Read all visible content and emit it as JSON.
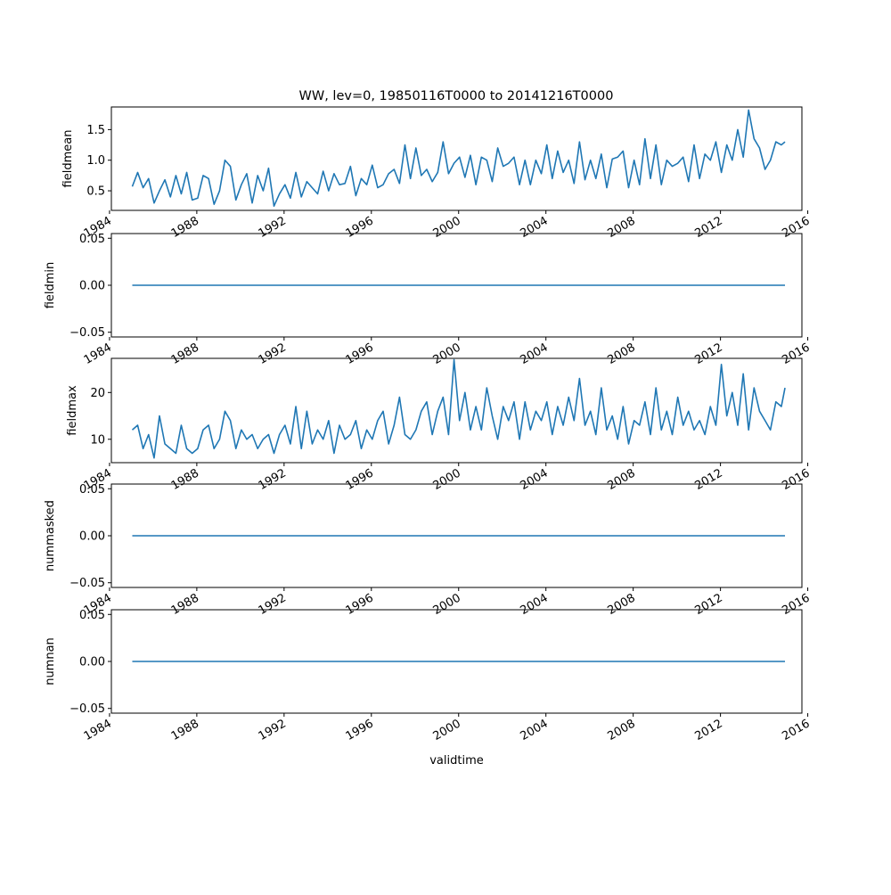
{
  "figure": {
    "title": "WW, lev=0, 19850116T0000 to 20141216T0000"
  },
  "style": {
    "line_color": "#1f77b4",
    "axis_color": "#000000",
    "background": "#ffffff"
  },
  "chart_data": [
    {
      "type": "line",
      "title": "WW, lev=0, 19850116T0000 to 20141216T0000",
      "ylabel": "fieldmean",
      "xlabel": "",
      "grid": false,
      "xlim": [
        "1984-02-01",
        "2015-09-25"
      ],
      "ylim": [
        0.18,
        1.87
      ],
      "yticks": [
        0.5,
        1.0,
        1.5
      ],
      "ytick_labels": [
        "0.5",
        "1.0",
        "1.5"
      ],
      "xticks": [
        "1984-01-01",
        "1988-01-01",
        "1992-01-01",
        "1996-01-01",
        "2000-01-01",
        "2004-01-01",
        "2008-01-01",
        "2012-01-01",
        "2016-01-01"
      ],
      "xtick_labels": [
        "1984",
        "1988",
        "1992",
        "1996",
        "2000",
        "2004",
        "2008",
        "2012",
        "2016"
      ],
      "series": [
        {
          "x": [
            "1985-01-16",
            "1985-04-16",
            "1985-07-16",
            "1985-10-16",
            "1986-01-16",
            "1986-04-16",
            "1986-07-16",
            "1986-10-16",
            "1987-01-16",
            "1987-04-16",
            "1987-07-16",
            "1987-10-16",
            "1988-01-16",
            "1988-04-16",
            "1988-07-16",
            "1988-10-16",
            "1989-01-16",
            "1989-04-16",
            "1989-07-16",
            "1989-10-16",
            "1990-01-16",
            "1990-04-16",
            "1990-07-16",
            "1990-10-16",
            "1991-01-16",
            "1991-04-16",
            "1991-07-16",
            "1991-10-16",
            "1992-01-16",
            "1992-04-16",
            "1992-07-16",
            "1992-10-16",
            "1993-01-16",
            "1993-04-16",
            "1993-07-16",
            "1993-10-16",
            "1994-01-16",
            "1994-04-16",
            "1994-07-16",
            "1994-10-16",
            "1995-01-16",
            "1995-04-16",
            "1995-07-16",
            "1995-10-16",
            "1996-01-16",
            "1996-04-16",
            "1996-07-16",
            "1996-10-16",
            "1997-01-16",
            "1997-04-16",
            "1997-07-16",
            "1997-10-16",
            "1998-01-16",
            "1998-04-16",
            "1998-07-16",
            "1998-10-16",
            "1999-01-16",
            "1999-04-16",
            "1999-07-16",
            "1999-10-16",
            "2000-01-16",
            "2000-04-16",
            "2000-07-16",
            "2000-10-16",
            "2001-01-16",
            "2001-04-16",
            "2001-07-16",
            "2001-10-16",
            "2002-01-16",
            "2002-04-16",
            "2002-07-16",
            "2002-10-16",
            "2003-01-16",
            "2003-04-16",
            "2003-07-16",
            "2003-10-16",
            "2004-01-16",
            "2004-04-16",
            "2004-07-16",
            "2004-10-16",
            "2005-01-16",
            "2005-04-16",
            "2005-07-16",
            "2005-10-16",
            "2006-01-16",
            "2006-04-16",
            "2006-07-16",
            "2006-10-16",
            "2007-01-16",
            "2007-04-16",
            "2007-07-16",
            "2007-10-16",
            "2008-01-16",
            "2008-04-16",
            "2008-07-16",
            "2008-10-16",
            "2009-01-16",
            "2009-04-16",
            "2009-07-16",
            "2009-10-16",
            "2010-01-16",
            "2010-04-16",
            "2010-07-16",
            "2010-10-16",
            "2011-01-16",
            "2011-04-16",
            "2011-07-16",
            "2011-10-16",
            "2012-01-16",
            "2012-04-16",
            "2012-07-16",
            "2012-10-16",
            "2013-01-16",
            "2013-04-16",
            "2013-07-16",
            "2013-10-16",
            "2014-01-16",
            "2014-04-16",
            "2014-07-16",
            "2014-10-16",
            "2014-12-16"
          ],
          "values": [
            0.57,
            0.8,
            0.55,
            0.7,
            0.3,
            0.5,
            0.68,
            0.4,
            0.75,
            0.45,
            0.8,
            0.35,
            0.38,
            0.75,
            0.7,
            0.28,
            0.5,
            1.0,
            0.9,
            0.35,
            0.6,
            0.78,
            0.3,
            0.75,
            0.5,
            0.87,
            0.25,
            0.45,
            0.6,
            0.38,
            0.8,
            0.4,
            0.65,
            0.55,
            0.45,
            0.82,
            0.5,
            0.78,
            0.6,
            0.62,
            0.9,
            0.42,
            0.7,
            0.6,
            0.92,
            0.55,
            0.6,
            0.78,
            0.85,
            0.62,
            1.25,
            0.7,
            1.2,
            0.75,
            0.85,
            0.65,
            0.8,
            1.3,
            0.78,
            0.95,
            1.05,
            0.72,
            1.08,
            0.6,
            1.05,
            1.0,
            0.65,
            1.2,
            0.9,
            0.95,
            1.05,
            0.6,
            1.0,
            0.6,
            1.0,
            0.78,
            1.25,
            0.7,
            1.15,
            0.8,
            1.0,
            0.62,
            1.3,
            0.68,
            1.0,
            0.7,
            1.1,
            0.55,
            1.02,
            1.05,
            1.15,
            0.55,
            1.0,
            0.6,
            1.35,
            0.7,
            1.25,
            0.6,
            1.0,
            0.9,
            0.95,
            1.05,
            0.65,
            1.25,
            0.7,
            1.1,
            1.0,
            1.3,
            0.8,
            1.25,
            1.0,
            1.5,
            1.05,
            1.82,
            1.35,
            1.2,
            0.85,
            1.0,
            1.3,
            1.25,
            1.3
          ]
        }
      ]
    },
    {
      "type": "line",
      "ylabel": "fieldmin",
      "xlabel": "",
      "grid": false,
      "xlim": [
        "1984-02-01",
        "2015-09-25"
      ],
      "ylim": [
        -0.055,
        0.055
      ],
      "yticks": [
        -0.05,
        0.0,
        0.05
      ],
      "ytick_labels": [
        "−0.05",
        "0.00",
        "0.05"
      ],
      "xticks": [
        "1984-01-01",
        "1988-01-01",
        "1992-01-01",
        "1996-01-01",
        "2000-01-01",
        "2004-01-01",
        "2008-01-01",
        "2012-01-01",
        "2016-01-01"
      ],
      "xtick_labels": [
        "1984",
        "1988",
        "1992",
        "1996",
        "2000",
        "2004",
        "2008",
        "2012",
        "2016"
      ],
      "series": [
        {
          "x": [
            "1985-01-16",
            "2014-12-16"
          ],
          "values": [
            0,
            0
          ]
        }
      ]
    },
    {
      "type": "line",
      "ylabel": "fieldmax",
      "xlabel": "",
      "grid": false,
      "xlim": [
        "1984-02-01",
        "2015-09-25"
      ],
      "ylim": [
        5,
        27.3
      ],
      "yticks": [
        10,
        20
      ],
      "ytick_labels": [
        "10",
        "20"
      ],
      "xticks": [
        "1984-01-01",
        "1988-01-01",
        "1992-01-01",
        "1996-01-01",
        "2000-01-01",
        "2004-01-01",
        "2008-01-01",
        "2012-01-01",
        "2016-01-01"
      ],
      "xtick_labels": [
        "1984",
        "1988",
        "1992",
        "1996",
        "2000",
        "2004",
        "2008",
        "2012",
        "2016"
      ],
      "series": [
        {
          "x": [
            "1985-01-16",
            "1985-04-16",
            "1985-07-16",
            "1985-10-16",
            "1986-01-16",
            "1986-04-16",
            "1986-07-16",
            "1986-10-16",
            "1987-01-16",
            "1987-04-16",
            "1987-07-16",
            "1987-10-16",
            "1988-01-16",
            "1988-04-16",
            "1988-07-16",
            "1988-10-16",
            "1989-01-16",
            "1989-04-16",
            "1989-07-16",
            "1989-10-16",
            "1990-01-16",
            "1990-04-16",
            "1990-07-16",
            "1990-10-16",
            "1991-01-16",
            "1991-04-16",
            "1991-07-16",
            "1991-10-16",
            "1992-01-16",
            "1992-04-16",
            "1992-07-16",
            "1992-10-16",
            "1993-01-16",
            "1993-04-16",
            "1993-07-16",
            "1993-10-16",
            "1994-01-16",
            "1994-04-16",
            "1994-07-16",
            "1994-10-16",
            "1995-01-16",
            "1995-04-16",
            "1995-07-16",
            "1995-10-16",
            "1996-01-16",
            "1996-04-16",
            "1996-07-16",
            "1996-10-16",
            "1997-01-16",
            "1997-04-16",
            "1997-07-16",
            "1997-10-16",
            "1998-01-16",
            "1998-04-16",
            "1998-07-16",
            "1998-10-16",
            "1999-01-16",
            "1999-04-16",
            "1999-07-16",
            "1999-10-16",
            "2000-01-16",
            "2000-04-16",
            "2000-07-16",
            "2000-10-16",
            "2001-01-16",
            "2001-04-16",
            "2001-07-16",
            "2001-10-16",
            "2002-01-16",
            "2002-04-16",
            "2002-07-16",
            "2002-10-16",
            "2003-01-16",
            "2003-04-16",
            "2003-07-16",
            "2003-10-16",
            "2004-01-16",
            "2004-04-16",
            "2004-07-16",
            "2004-10-16",
            "2005-01-16",
            "2005-04-16",
            "2005-07-16",
            "2005-10-16",
            "2006-01-16",
            "2006-04-16",
            "2006-07-16",
            "2006-10-16",
            "2007-01-16",
            "2007-04-16",
            "2007-07-16",
            "2007-10-16",
            "2008-01-16",
            "2008-04-16",
            "2008-07-16",
            "2008-10-16",
            "2009-01-16",
            "2009-04-16",
            "2009-07-16",
            "2009-10-16",
            "2010-01-16",
            "2010-04-16",
            "2010-07-16",
            "2010-10-16",
            "2011-01-16",
            "2011-04-16",
            "2011-07-16",
            "2011-10-16",
            "2012-01-16",
            "2012-04-16",
            "2012-07-16",
            "2012-10-16",
            "2013-01-16",
            "2013-04-16",
            "2013-07-16",
            "2013-10-16",
            "2014-01-16",
            "2014-04-16",
            "2014-07-16",
            "2014-10-16",
            "2014-12-16"
          ],
          "values": [
            12,
            13,
            8,
            11,
            6,
            15,
            9,
            8,
            7,
            13,
            8,
            7,
            8,
            12,
            13,
            8,
            10,
            16,
            14,
            8,
            12,
            10,
            11,
            8,
            10,
            11,
            7,
            11,
            13,
            9,
            17,
            8,
            16,
            9,
            12,
            10,
            14,
            7,
            13,
            10,
            11,
            14,
            8,
            12,
            10,
            14,
            16,
            9,
            13,
            19,
            11,
            10,
            12,
            16,
            18,
            11,
            16,
            19,
            11,
            27,
            14,
            20,
            12,
            17,
            12,
            21,
            15,
            10,
            17,
            14,
            18,
            10,
            18,
            12,
            16,
            14,
            18,
            11,
            17,
            13,
            19,
            14,
            23,
            13,
            16,
            11,
            21,
            12,
            15,
            10,
            17,
            9,
            14,
            13,
            18,
            11,
            21,
            12,
            16,
            11,
            19,
            13,
            16,
            12,
            14,
            11,
            17,
            13,
            26,
            15,
            20,
            13,
            24,
            12,
            21,
            16,
            14,
            12,
            18,
            17,
            21
          ]
        }
      ]
    },
    {
      "type": "line",
      "ylabel": "nummasked",
      "xlabel": "",
      "grid": false,
      "xlim": [
        "1984-02-01",
        "2015-09-25"
      ],
      "ylim": [
        -0.055,
        0.055
      ],
      "yticks": [
        -0.05,
        0.0,
        0.05
      ],
      "ytick_labels": [
        "−0.05",
        "0.00",
        "0.05"
      ],
      "xticks": [
        "1984-01-01",
        "1988-01-01",
        "1992-01-01",
        "1996-01-01",
        "2000-01-01",
        "2004-01-01",
        "2008-01-01",
        "2012-01-01",
        "2016-01-01"
      ],
      "xtick_labels": [
        "1984",
        "1988",
        "1992",
        "1996",
        "2000",
        "2004",
        "2008",
        "2012",
        "2016"
      ],
      "series": [
        {
          "x": [
            "1985-01-16",
            "2014-12-16"
          ],
          "values": [
            0,
            0
          ]
        }
      ]
    },
    {
      "type": "line",
      "ylabel": "numnan",
      "xlabel": "validtime",
      "grid": false,
      "xlim": [
        "1984-02-01",
        "2015-09-25"
      ],
      "ylim": [
        -0.055,
        0.055
      ],
      "yticks": [
        -0.05,
        0.0,
        0.05
      ],
      "ytick_labels": [
        "−0.05",
        "0.00",
        "0.05"
      ],
      "xticks": [
        "1984-01-01",
        "1988-01-01",
        "1992-01-01",
        "1996-01-01",
        "2000-01-01",
        "2004-01-01",
        "2008-01-01",
        "2012-01-01",
        "2016-01-01"
      ],
      "xtick_labels": [
        "1984",
        "1988",
        "1992",
        "1996",
        "2000",
        "2004",
        "2008",
        "2012",
        "2016"
      ],
      "series": [
        {
          "x": [
            "1985-01-16",
            "2014-12-16"
          ],
          "values": [
            0,
            0
          ]
        }
      ]
    }
  ]
}
